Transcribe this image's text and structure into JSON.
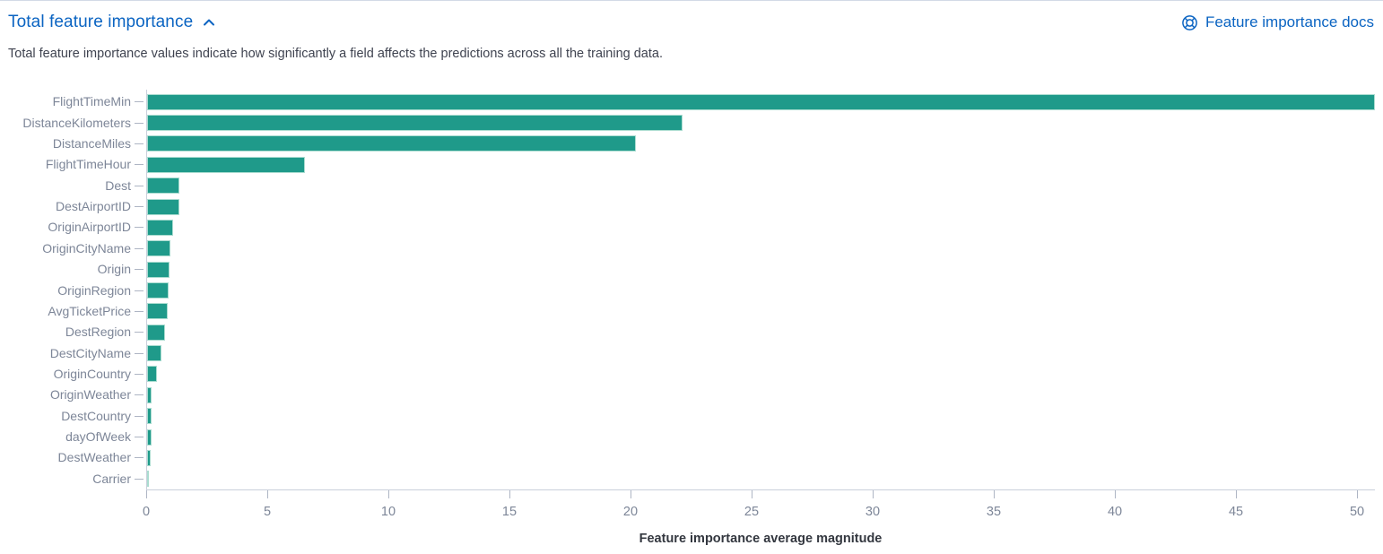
{
  "header": {
    "title": "Total feature importance",
    "collapse_icon": "chevron-up-icon",
    "docs_link_label": "Feature importance docs",
    "docs_icon": "help-lifebuoy-icon",
    "link_color": "#0b64c2"
  },
  "description": "Total feature importance values indicate how significantly a field affects the predictions across all the training data.",
  "chart_data": {
    "type": "bar",
    "orientation": "horizontal",
    "title": "",
    "xlabel": "Feature importance average magnitude",
    "ylabel": "",
    "categories": [
      "FlightTimeMin",
      "DistanceKilometers",
      "DistanceMiles",
      "FlightTimeHour",
      "Dest",
      "DestAirportID",
      "OriginAirportID",
      "OriginCityName",
      "Origin",
      "OriginRegion",
      "AvgTicketPrice",
      "DestRegion",
      "DestCityName",
      "OriginCountry",
      "OriginWeather",
      "DestCountry",
      "dayOfWeek",
      "DestWeather",
      "Carrier"
    ],
    "values": [
      50.7,
      22.1,
      20.2,
      6.5,
      1.35,
      1.32,
      1.07,
      0.97,
      0.94,
      0.9,
      0.84,
      0.73,
      0.6,
      0.42,
      0.2,
      0.19,
      0.17,
      0.16,
      0.06
    ],
    "xlim": [
      0,
      50.74
    ],
    "xticks": [
      0,
      5,
      10,
      15,
      20,
      25,
      30,
      35,
      40,
      45,
      50
    ],
    "bar_color": "#1f9a8a",
    "grid": false,
    "legend": false
  }
}
